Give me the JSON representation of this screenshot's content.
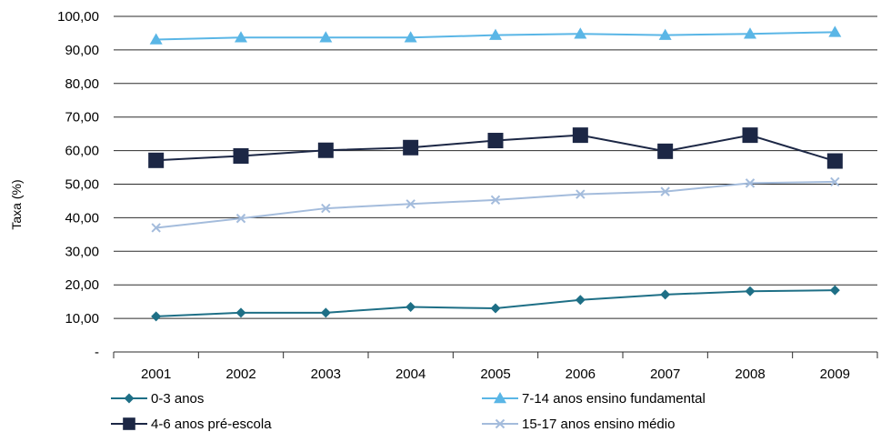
{
  "chart_data": {
    "type": "line",
    "ylabel": "Taxa (%)",
    "xlabel": "",
    "categories": [
      "2001",
      "2002",
      "2003",
      "2004",
      "2005",
      "2006",
      "2007",
      "2008",
      "2009"
    ],
    "ylim": [
      0,
      100
    ],
    "y_ticks": [
      0,
      10,
      20,
      30,
      40,
      50,
      60,
      70,
      80,
      90,
      100
    ],
    "y_tick_labels": [
      "-",
      "10,00",
      "20,00",
      "30,00",
      "40,00",
      "50,00",
      "60,00",
      "70,00",
      "80,00",
      "90,00",
      "100,00"
    ],
    "grid": true,
    "legend_position": "bottom",
    "series": [
      {
        "name": "0-3 anos",
        "marker": "diamond",
        "color": "#1e6f86",
        "values": [
          10.6,
          11.7,
          11.7,
          13.4,
          13.0,
          15.5,
          17.1,
          18.1,
          18.4
        ]
      },
      {
        "name": "7-14 anos ensino fundamental",
        "marker": "triangle",
        "color": "#5ab6e6",
        "values": [
          93.1,
          93.7,
          93.7,
          93.7,
          94.4,
          94.8,
          94.4,
          94.8,
          95.3
        ]
      },
      {
        "name": "4-6 anos pré-escola",
        "marker": "square",
        "color": "#1c2745",
        "values": [
          57.1,
          58.4,
          60.1,
          60.9,
          63.0,
          64.6,
          59.8,
          64.6,
          56.9
        ]
      },
      {
        "name": "15-17 anos ensino médio",
        "marker": "x",
        "color": "#a4bcdc",
        "values": [
          37.0,
          39.8,
          42.8,
          44.1,
          45.3,
          47.0,
          47.8,
          50.3,
          50.7
        ]
      }
    ]
  }
}
